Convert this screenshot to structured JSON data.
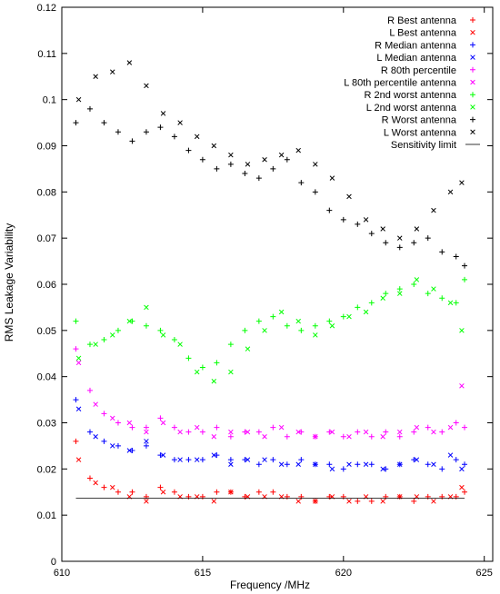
{
  "chart_data": {
    "type": "scatter",
    "title": "",
    "xlabel": "Frequency /MHz",
    "ylabel": "RMS Leakage Variability",
    "xlim": [
      610,
      625.3
    ],
    "ylim": [
      0,
      0.12
    ],
    "x_ticks": [
      610,
      615,
      620,
      625
    ],
    "x_tick_labels": [
      "610",
      "615",
      "620",
      "625"
    ],
    "y_ticks": [
      0,
      0.01,
      0.02,
      0.03,
      0.04,
      0.05,
      0.06,
      0.07,
      0.08,
      0.09,
      0.1,
      0.11,
      0.12
    ],
    "y_tick_labels": [
      "0",
      "0.01",
      "0.02",
      "0.03",
      "0.04",
      "0.05",
      "0.06",
      "0.07",
      "0.08",
      "0.09",
      "0.1",
      "0.11",
      "0.12"
    ],
    "grid": false,
    "legend_position": "top-right",
    "series": [
      {
        "name": "R Best antenna",
        "color": "#ff0000",
        "marker": "+",
        "x": [
          610.5,
          611.0,
          611.5,
          612.0,
          612.5,
          613.0,
          613.5,
          614.0,
          614.5,
          615.0,
          615.5,
          616.0,
          616.5,
          617.0,
          617.5,
          618.0,
          618.5,
          619.0,
          619.5,
          620.0,
          620.5,
          621.0,
          621.5,
          622.0,
          622.5,
          623.0,
          623.5,
          624.0,
          624.3
        ],
        "y": [
          0.026,
          0.018,
          0.016,
          0.015,
          0.015,
          0.014,
          0.016,
          0.015,
          0.014,
          0.014,
          0.015,
          0.015,
          0.014,
          0.015,
          0.015,
          0.014,
          0.014,
          0.013,
          0.014,
          0.014,
          0.013,
          0.013,
          0.014,
          0.014,
          0.013,
          0.014,
          0.014,
          0.014,
          0.015
        ]
      },
      {
        "name": "L Best antenna",
        "color": "#ff0000",
        "marker": "x",
        "x": [
          610.6,
          611.2,
          611.8,
          612.4,
          613.0,
          613.6,
          614.2,
          614.8,
          615.4,
          616.0,
          616.6,
          617.2,
          617.8,
          618.4,
          619.0,
          619.6,
          620.2,
          620.8,
          621.4,
          622.0,
          622.6,
          623.2,
          623.8,
          624.2
        ],
        "y": [
          0.022,
          0.017,
          0.016,
          0.014,
          0.013,
          0.015,
          0.014,
          0.014,
          0.013,
          0.015,
          0.014,
          0.014,
          0.014,
          0.013,
          0.013,
          0.014,
          0.013,
          0.014,
          0.013,
          0.014,
          0.014,
          0.013,
          0.014,
          0.016
        ]
      },
      {
        "name": "R Median antenna",
        "color": "#0000ff",
        "marker": "+",
        "x": [
          610.5,
          611.0,
          611.5,
          612.0,
          612.5,
          613.0,
          613.5,
          614.0,
          614.5,
          615.0,
          615.5,
          616.0,
          616.5,
          617.0,
          617.5,
          618.0,
          618.5,
          619.0,
          619.5,
          620.0,
          620.5,
          621.0,
          621.5,
          622.0,
          622.5,
          623.0,
          623.5,
          624.0,
          624.3
        ],
        "y": [
          0.035,
          0.028,
          0.026,
          0.025,
          0.024,
          0.025,
          0.023,
          0.022,
          0.022,
          0.022,
          0.023,
          0.022,
          0.022,
          0.021,
          0.022,
          0.021,
          0.022,
          0.021,
          0.021,
          0.02,
          0.021,
          0.021,
          0.02,
          0.021,
          0.022,
          0.021,
          0.02,
          0.022,
          0.021
        ]
      },
      {
        "name": "L Median antenna",
        "color": "#0000ff",
        "marker": "x",
        "x": [
          610.6,
          611.2,
          611.8,
          612.4,
          613.0,
          613.6,
          614.2,
          614.8,
          615.4,
          616.0,
          616.6,
          617.2,
          617.8,
          618.4,
          619.0,
          619.6,
          620.2,
          620.8,
          621.4,
          622.0,
          622.6,
          623.2,
          623.8,
          624.2
        ],
        "y": [
          0.033,
          0.027,
          0.025,
          0.024,
          0.026,
          0.023,
          0.022,
          0.022,
          0.023,
          0.021,
          0.022,
          0.022,
          0.021,
          0.021,
          0.021,
          0.02,
          0.021,
          0.021,
          0.02,
          0.021,
          0.022,
          0.021,
          0.023,
          0.02
        ]
      },
      {
        "name": "R 80th percentile",
        "color": "#ff00ff",
        "marker": "+",
        "x": [
          610.5,
          611.0,
          611.5,
          612.0,
          612.5,
          613.0,
          613.5,
          614.0,
          614.5,
          615.0,
          615.5,
          616.0,
          616.5,
          617.0,
          617.5,
          618.0,
          618.5,
          619.0,
          619.5,
          620.0,
          620.5,
          621.0,
          621.5,
          622.0,
          622.5,
          623.0,
          623.5,
          624.0,
          624.3
        ],
        "y": [
          0.046,
          0.037,
          0.032,
          0.03,
          0.029,
          0.029,
          0.031,
          0.029,
          0.028,
          0.028,
          0.029,
          0.027,
          0.028,
          0.028,
          0.029,
          0.027,
          0.028,
          0.027,
          0.028,
          0.027,
          0.028,
          0.027,
          0.028,
          0.027,
          0.028,
          0.029,
          0.028,
          0.03,
          0.029
        ]
      },
      {
        "name": "L 80th percentile antenna",
        "color": "#ff00ff",
        "marker": "x",
        "x": [
          610.6,
          611.2,
          611.8,
          612.4,
          613.0,
          613.6,
          614.2,
          614.8,
          615.4,
          616.0,
          616.6,
          617.2,
          617.8,
          618.4,
          619.0,
          619.6,
          620.2,
          620.8,
          621.4,
          622.0,
          622.6,
          623.2,
          623.8,
          624.2
        ],
        "y": [
          0.043,
          0.034,
          0.031,
          0.03,
          0.028,
          0.03,
          0.028,
          0.029,
          0.027,
          0.028,
          0.028,
          0.027,
          0.029,
          0.028,
          0.027,
          0.028,
          0.027,
          0.028,
          0.027,
          0.028,
          0.029,
          0.028,
          0.029,
          0.038
        ]
      },
      {
        "name": "R 2nd worst antenna",
        "color": "#00ff00",
        "marker": "+",
        "x": [
          610.5,
          611.0,
          611.5,
          612.0,
          612.5,
          613.0,
          613.5,
          614.0,
          614.5,
          615.0,
          615.5,
          616.0,
          616.5,
          617.0,
          617.5,
          618.0,
          618.5,
          619.0,
          619.5,
          620.0,
          620.5,
          621.0,
          621.5,
          622.0,
          622.5,
          623.0,
          623.5,
          624.0,
          624.3
        ],
        "y": [
          0.052,
          0.047,
          0.048,
          0.05,
          0.052,
          0.051,
          0.05,
          0.048,
          0.044,
          0.042,
          0.043,
          0.047,
          0.05,
          0.052,
          0.053,
          0.051,
          0.05,
          0.051,
          0.052,
          0.053,
          0.055,
          0.056,
          0.058,
          0.059,
          0.06,
          0.058,
          0.057,
          0.056,
          0.061
        ]
      },
      {
        "name": "L 2nd worst antenna",
        "color": "#00ff00",
        "marker": "x",
        "x": [
          610.6,
          611.2,
          611.8,
          612.4,
          613.0,
          613.6,
          614.2,
          614.8,
          615.4,
          616.0,
          616.6,
          617.2,
          617.8,
          618.4,
          619.0,
          619.6,
          620.2,
          620.8,
          621.4,
          622.0,
          622.6,
          623.2,
          623.8,
          624.2
        ],
        "y": [
          0.044,
          0.047,
          0.049,
          0.052,
          0.055,
          0.049,
          0.047,
          0.041,
          0.039,
          0.041,
          0.046,
          0.05,
          0.054,
          0.052,
          0.049,
          0.051,
          0.053,
          0.054,
          0.057,
          0.058,
          0.061,
          0.059,
          0.056,
          0.05
        ]
      },
      {
        "name": "R Worst antenna",
        "color": "#000000",
        "marker": "+",
        "x": [
          610.5,
          611.0,
          611.5,
          612.0,
          612.5,
          613.0,
          613.5,
          614.0,
          614.5,
          615.0,
          615.5,
          616.0,
          616.5,
          617.0,
          617.5,
          618.0,
          618.5,
          619.0,
          619.5,
          620.0,
          620.5,
          621.0,
          621.5,
          622.0,
          622.5,
          623.0,
          623.5,
          624.0,
          624.3
        ],
        "y": [
          0.095,
          0.098,
          0.095,
          0.093,
          0.091,
          0.093,
          0.094,
          0.092,
          0.089,
          0.087,
          0.085,
          0.086,
          0.084,
          0.083,
          0.085,
          0.087,
          0.082,
          0.08,
          0.076,
          0.074,
          0.073,
          0.071,
          0.069,
          0.068,
          0.069,
          0.07,
          0.067,
          0.066,
          0.064
        ]
      },
      {
        "name": "L Worst antenna",
        "color": "#000000",
        "marker": "x",
        "x": [
          610.6,
          611.2,
          611.8,
          612.4,
          613.0,
          613.6,
          614.2,
          614.8,
          615.4,
          616.0,
          616.6,
          617.2,
          617.8,
          618.4,
          619.0,
          619.6,
          620.2,
          620.8,
          621.4,
          622.0,
          622.6,
          623.2,
          623.8,
          624.2
        ],
        "y": [
          0.1,
          0.105,
          0.106,
          0.108,
          0.103,
          0.097,
          0.095,
          0.092,
          0.09,
          0.088,
          0.086,
          0.087,
          0.088,
          0.089,
          0.086,
          0.083,
          0.079,
          0.074,
          0.072,
          0.07,
          0.072,
          0.076,
          0.08,
          0.082
        ]
      }
    ],
    "lines": [
      {
        "name": "Sensitivity limit",
        "color": "#000000",
        "x": [
          610.5,
          624.3
        ],
        "y": [
          0.0137,
          0.0137
        ]
      }
    ]
  }
}
